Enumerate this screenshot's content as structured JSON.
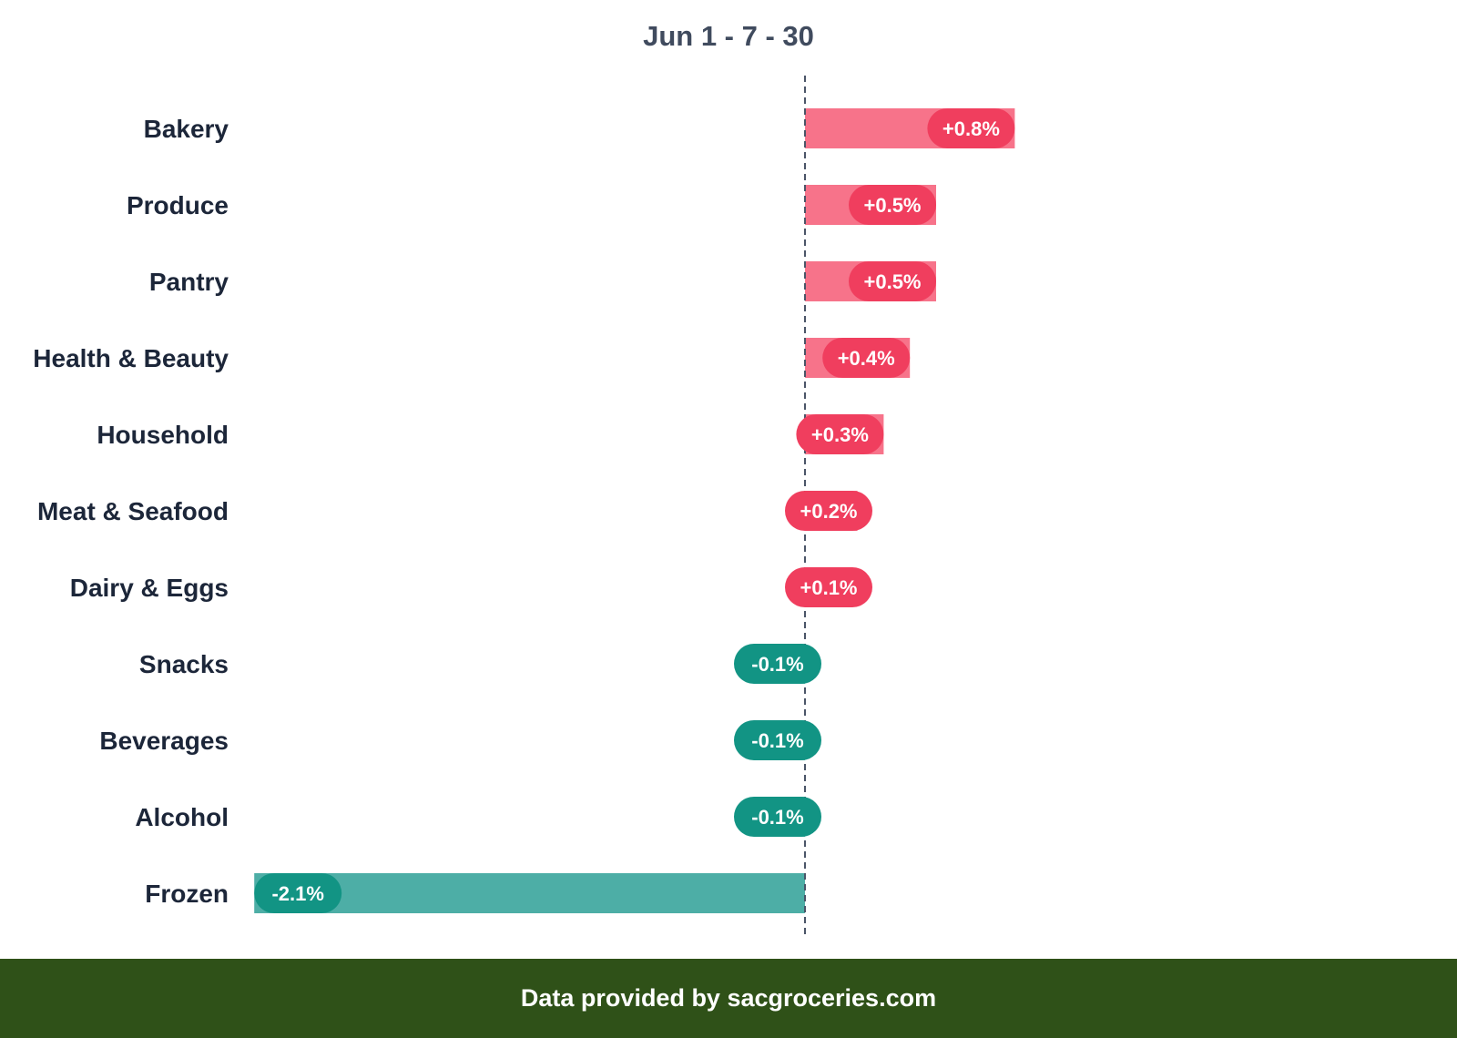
{
  "chart_data": {
    "type": "bar",
    "orientation": "horizontal",
    "title": "Jun 1 - 7 - 30",
    "categories": [
      "Bakery",
      "Produce",
      "Pantry",
      "Health & Beauty",
      "Household",
      "Meat & Seafood",
      "Dairy & Eggs",
      "Snacks",
      "Beverages",
      "Alcohol",
      "Frozen"
    ],
    "values": [
      0.8,
      0.5,
      0.5,
      0.4,
      0.3,
      0.2,
      0.1,
      -0.1,
      -0.1,
      -0.1,
      -2.1
    ],
    "value_labels": [
      "+0.8%",
      "+0.5%",
      "+0.5%",
      "+0.4%",
      "+0.3%",
      "+0.2%",
      "+0.1%",
      "-0.1%",
      "-0.1%",
      "-0.1%",
      "-2.1%"
    ],
    "unit": "%",
    "xlim": [
      -2.1,
      2.2
    ],
    "grid": false,
    "zero_line": "dashed",
    "colors": {
      "positive_bar": "#f7738a",
      "positive_label": "#f03e5e",
      "negative_bar": "#4daea6",
      "negative_label": "#129484",
      "category_text": "#1c2639",
      "zero_line": "#4b5568"
    }
  },
  "footer": {
    "text": "Data provided by sacgroceries.com",
    "background": "#2f5118"
  }
}
